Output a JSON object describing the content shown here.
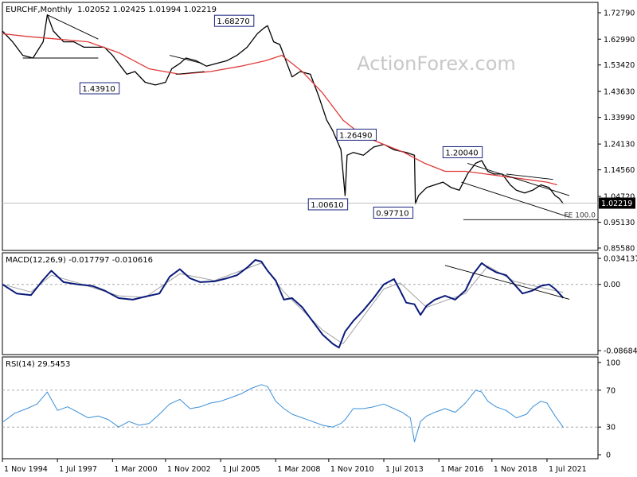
{
  "header": {
    "symbol": "EURCHF,Monthly",
    "ohlc": "1.02052 1.02425 1.01994 1.02219"
  },
  "watermark": "ActionForex.com",
  "colors": {
    "price_bars": "#000000",
    "sma": "#e03a3a",
    "macd": "#0a1a7a",
    "signal": "#a0a0a0",
    "rsi": "#3a8fd8",
    "label_border": "#1a237e",
    "current_price_bg": "#000000"
  },
  "chart_data": [
    {
      "type": "line",
      "title": "EURCHF,Monthly",
      "x_labels": [
        "1 Nov 1994",
        "1 Jul 1997",
        "1 Mar 2000",
        "1 Nov 2002",
        "1 Jul 2005",
        "1 Mar 2008",
        "1 Nov 2010",
        "1 Jul 2013",
        "1 Mar 2016",
        "1 Nov 2018",
        "1 Jul 2021"
      ],
      "y_ticks": [
        "1.72790",
        "1.62990",
        "1.53420",
        "1.43630",
        "1.33990",
        "1.24130",
        "1.14560",
        "1.04720",
        "0.95130",
        "0.85580"
      ],
      "ylim": [
        0.8558,
        1.7279
      ],
      "grid": false,
      "series": [
        {
          "name": "price",
          "values": [
            [
              1994.8,
              1.66
            ],
            [
              1995.3,
              1.62
            ],
            [
              1995.8,
              1.57
            ],
            [
              1996.3,
              1.56
            ],
            [
              1996.8,
              1.62
            ],
            [
              1997.0,
              1.72
            ],
            [
              1997.3,
              1.66
            ],
            [
              1997.8,
              1.62
            ],
            [
              1998.3,
              1.62
            ],
            [
              1998.8,
              1.6
            ],
            [
              1999.3,
              1.6
            ],
            [
              1999.8,
              1.6
            ],
            [
              2000.2,
              1.57
            ],
            [
              2000.6,
              1.53
            ],
            [
              2000.9,
              1.5
            ],
            [
              2001.3,
              1.51
            ],
            [
              2001.8,
              1.47
            ],
            [
              2002.3,
              1.46
            ],
            [
              2002.8,
              1.47
            ],
            [
              2003.1,
              1.52
            ],
            [
              2003.5,
              1.54
            ],
            [
              2003.8,
              1.56
            ],
            [
              2004.3,
              1.55
            ],
            [
              2004.8,
              1.53
            ],
            [
              2005.3,
              1.54
            ],
            [
              2005.8,
              1.55
            ],
            [
              2006.3,
              1.57
            ],
            [
              2006.8,
              1.6
            ],
            [
              2007.3,
              1.65
            ],
            [
              2007.6,
              1.67
            ],
            [
              2007.8,
              1.68
            ],
            [
              2008.1,
              1.62
            ],
            [
              2008.4,
              1.61
            ],
            [
              2008.7,
              1.55
            ],
            [
              2009.0,
              1.49
            ],
            [
              2009.4,
              1.51
            ],
            [
              2009.9,
              1.5
            ],
            [
              2010.3,
              1.42
            ],
            [
              2010.7,
              1.33
            ],
            [
              2011.0,
              1.29
            ],
            [
              2011.4,
              1.22
            ],
            [
              2011.6,
              1.05
            ],
            [
              2011.7,
              1.2
            ],
            [
              2012.0,
              1.21
            ],
            [
              2012.5,
              1.2
            ],
            [
              2013.0,
              1.23
            ],
            [
              2013.5,
              1.24
            ],
            [
              2014.0,
              1.22
            ],
            [
              2014.6,
              1.21
            ],
            [
              2015.0,
              1.2
            ],
            [
              2015.05,
              1.02
            ],
            [
              2015.2,
              1.05
            ],
            [
              2015.6,
              1.08
            ],
            [
              2016.0,
              1.09
            ],
            [
              2016.4,
              1.1
            ],
            [
              2016.8,
              1.08
            ],
            [
              2017.2,
              1.07
            ],
            [
              2017.6,
              1.13
            ],
            [
              2018.0,
              1.17
            ],
            [
              2018.3,
              1.18
            ],
            [
              2018.6,
              1.14
            ],
            [
              2018.9,
              1.13
            ],
            [
              2019.3,
              1.13
            ],
            [
              2019.7,
              1.09
            ],
            [
              2020.0,
              1.07
            ],
            [
              2020.4,
              1.06
            ],
            [
              2020.8,
              1.07
            ],
            [
              2021.2,
              1.09
            ],
            [
              2021.6,
              1.08
            ],
            [
              2021.9,
              1.05
            ],
            [
              2022.1,
              1.04
            ],
            [
              2022.3,
              1.02
            ]
          ]
        },
        {
          "name": "sma",
          "values": [
            [
              1994.8,
              1.65
            ],
            [
              1996.0,
              1.64
            ],
            [
              1997.5,
              1.63
            ],
            [
              1999.0,
              1.62
            ],
            [
              2000.5,
              1.58
            ],
            [
              2002.0,
              1.52
            ],
            [
              2003.5,
              1.5
            ],
            [
              2005.0,
              1.51
            ],
            [
              2006.5,
              1.53
            ],
            [
              2007.7,
              1.55
            ],
            [
              2008.5,
              1.57
            ],
            [
              2009.5,
              1.51
            ],
            [
              2010.5,
              1.43
            ],
            [
              2011.5,
              1.33
            ],
            [
              2012.5,
              1.27
            ],
            [
              2013.5,
              1.24
            ],
            [
              2014.5,
              1.21
            ],
            [
              2015.5,
              1.17
            ],
            [
              2016.5,
              1.14
            ],
            [
              2017.5,
              1.14
            ],
            [
              2018.5,
              1.13
            ],
            [
              2019.5,
              1.12
            ],
            [
              2020.5,
              1.11
            ],
            [
              2021.5,
              1.1
            ],
            [
              2022.0,
              1.09
            ]
          ]
        }
      ],
      "annotations": [
        "1.68270",
        "1.43910",
        "1.26490",
        "1.00610",
        "0.97710",
        "1.20040",
        "FE 100.0"
      ],
      "current_price": "1.02219"
    },
    {
      "type": "line",
      "title": "MACD(12,26,9) -0.017797 -0.010616",
      "y_ticks": [
        "0.034137",
        "0.00",
        "-0.086849"
      ],
      "ylim": [
        -0.086849,
        0.034137
      ],
      "series": [
        {
          "name": "macd",
          "values": [
            [
              1994.8,
              0.0
            ],
            [
              1995.5,
              -0.012
            ],
            [
              1996.2,
              -0.014
            ],
            [
              1996.8,
              0.006
            ],
            [
              1997.2,
              0.018
            ],
            [
              1997.8,
              0.003
            ],
            [
              1998.5,
              0.0
            ],
            [
              1999.2,
              -0.002
            ],
            [
              1999.8,
              -0.008
            ],
            [
              2000.5,
              -0.018
            ],
            [
              2001.2,
              -0.02
            ],
            [
              2001.8,
              -0.016
            ],
            [
              2002.5,
              -0.012
            ],
            [
              2003.0,
              0.01
            ],
            [
              2003.5,
              0.02
            ],
            [
              2004.0,
              0.008
            ],
            [
              2004.5,
              0.003
            ],
            [
              2005.2,
              0.004
            ],
            [
              2005.8,
              0.008
            ],
            [
              2006.3,
              0.012
            ],
            [
              2006.8,
              0.022
            ],
            [
              2007.2,
              0.032
            ],
            [
              2007.5,
              0.03
            ],
            [
              2007.8,
              0.018
            ],
            [
              2008.2,
              0.005
            ],
            [
              2008.6,
              -0.02
            ],
            [
              2009.0,
              -0.018
            ],
            [
              2009.5,
              -0.03
            ],
            [
              2010.0,
              -0.048
            ],
            [
              2010.5,
              -0.066
            ],
            [
              2011.0,
              -0.078
            ],
            [
              2011.3,
              -0.083
            ],
            [
              2011.6,
              -0.062
            ],
            [
              2012.0,
              -0.048
            ],
            [
              2012.5,
              -0.034
            ],
            [
              2013.0,
              -0.018
            ],
            [
              2013.5,
              0.0
            ],
            [
              2014.0,
              0.007
            ],
            [
              2014.3,
              -0.008
            ],
            [
              2014.6,
              -0.024
            ],
            [
              2015.0,
              -0.026
            ],
            [
              2015.3,
              -0.04
            ],
            [
              2015.6,
              -0.028
            ],
            [
              2016.0,
              -0.02
            ],
            [
              2016.5,
              -0.015
            ],
            [
              2017.0,
              -0.02
            ],
            [
              2017.5,
              -0.008
            ],
            [
              2017.9,
              0.014
            ],
            [
              2018.3,
              0.028
            ],
            [
              2018.6,
              0.022
            ],
            [
              2019.0,
              0.016
            ],
            [
              2019.5,
              0.012
            ],
            [
              2019.9,
              0.0
            ],
            [
              2020.3,
              -0.012
            ],
            [
              2020.8,
              -0.008
            ],
            [
              2021.2,
              -0.002
            ],
            [
              2021.6,
              0.0
            ],
            [
              2021.9,
              -0.006
            ],
            [
              2022.3,
              -0.017797
            ]
          ]
        },
        {
          "name": "signal",
          "values": [
            [
              1994.8,
              0.0
            ],
            [
              1996.2,
              -0.01
            ],
            [
              1997.2,
              0.012
            ],
            [
              1998.5,
              0.002
            ],
            [
              2000.5,
              -0.015
            ],
            [
              2001.8,
              -0.017
            ],
            [
              2003.5,
              0.014
            ],
            [
              2005.2,
              0.005
            ],
            [
              2007.5,
              0.028
            ],
            [
              2008.6,
              -0.01
            ],
            [
              2010.5,
              -0.06
            ],
            [
              2011.5,
              -0.078
            ],
            [
              2013.5,
              -0.006
            ],
            [
              2014.3,
              0.002
            ],
            [
              2015.6,
              -0.03
            ],
            [
              2017.5,
              -0.012
            ],
            [
              2018.6,
              0.024
            ],
            [
              2019.9,
              0.004
            ],
            [
              2021.2,
              -0.004
            ],
            [
              2022.3,
              -0.010616
            ]
          ]
        }
      ]
    },
    {
      "type": "line",
      "title": "RSI(14) 29.5453",
      "y_ticks": [
        "100",
        "70",
        "30",
        "0"
      ],
      "ylim": [
        0,
        100
      ],
      "series": [
        {
          "name": "rsi",
          "values": [
            [
              1994.8,
              35
            ],
            [
              1995.4,
              45
            ],
            [
              1996.0,
              50
            ],
            [
              1996.5,
              55
            ],
            [
              1997.0,
              68
            ],
            [
              1997.5,
              48
            ],
            [
              1998.0,
              52
            ],
            [
              1998.5,
              46
            ],
            [
              1999.0,
              40
            ],
            [
              1999.5,
              42
            ],
            [
              2000.0,
              38
            ],
            [
              2000.5,
              30
            ],
            [
              2001.0,
              36
            ],
            [
              2001.5,
              32
            ],
            [
              2002.0,
              34
            ],
            [
              2002.5,
              44
            ],
            [
              2003.0,
              55
            ],
            [
              2003.5,
              60
            ],
            [
              2004.0,
              50
            ],
            [
              2004.5,
              52
            ],
            [
              2005.0,
              56
            ],
            [
              2005.5,
              58
            ],
            [
              2006.0,
              62
            ],
            [
              2006.5,
              66
            ],
            [
              2007.0,
              72
            ],
            [
              2007.5,
              76
            ],
            [
              2007.8,
              74
            ],
            [
              2008.2,
              58
            ],
            [
              2008.6,
              50
            ],
            [
              2009.0,
              44
            ],
            [
              2009.5,
              40
            ],
            [
              2010.0,
              36
            ],
            [
              2010.5,
              32
            ],
            [
              2011.0,
              30
            ],
            [
              2011.4,
              34
            ],
            [
              2011.6,
              38
            ],
            [
              2012.0,
              50
            ],
            [
              2012.5,
              50
            ],
            [
              2013.0,
              52
            ],
            [
              2013.5,
              55
            ],
            [
              2014.0,
              50
            ],
            [
              2014.4,
              46
            ],
            [
              2014.8,
              40
            ],
            [
              2015.0,
              14
            ],
            [
              2015.3,
              36
            ],
            [
              2015.6,
              42
            ],
            [
              2016.0,
              46
            ],
            [
              2016.5,
              50
            ],
            [
              2017.0,
              46
            ],
            [
              2017.5,
              56
            ],
            [
              2018.0,
              70
            ],
            [
              2018.3,
              68
            ],
            [
              2018.6,
              58
            ],
            [
              2019.0,
              52
            ],
            [
              2019.5,
              48
            ],
            [
              2020.0,
              40
            ],
            [
              2020.5,
              44
            ],
            [
              2020.8,
              52
            ],
            [
              2021.2,
              58
            ],
            [
              2021.5,
              56
            ],
            [
              2021.9,
              42
            ],
            [
              2022.3,
              29.5453
            ]
          ]
        }
      ]
    }
  ]
}
